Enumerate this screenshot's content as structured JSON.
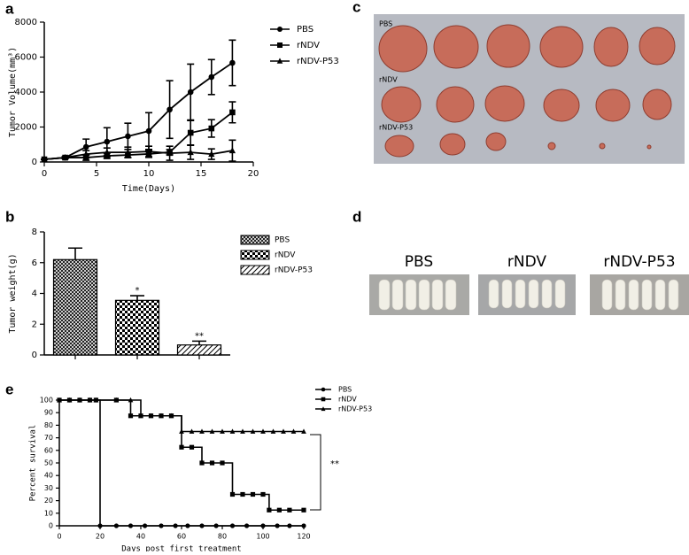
{
  "panels": [
    "a",
    "b",
    "c",
    "d",
    "e"
  ],
  "photo_c_labels": [
    "PBS",
    "rNDV",
    "rNDV-P53"
  ],
  "photo_d_labels": [
    "PBS",
    "rNDV",
    "rNDV-P53"
  ],
  "chart_data": [
    {
      "type": "line",
      "xlabel": "Time(Days)",
      "ylabel": "Tumor Volume(mm³)",
      "x": [
        0,
        2,
        4,
        6,
        8,
        10,
        12,
        14,
        16,
        18
      ],
      "xlim": [
        0,
        20
      ],
      "xticks": [
        0,
        5,
        10,
        15,
        20
      ],
      "ylim": [
        0,
        8000
      ],
      "yticks": [
        0,
        2000,
        4000,
        6000,
        8000
      ],
      "series": [
        {
          "name": "PBS",
          "marker": "circle",
          "color": "#000000",
          "values": [
            150,
            250,
            860,
            1160,
            1470,
            1770,
            3000,
            4000,
            4860,
            5670
          ],
          "errors": [
            0,
            50,
            450,
            800,
            750,
            1050,
            1650,
            1600,
            1000,
            1300
          ]
        },
        {
          "name": "rNDV",
          "marker": "square",
          "color": "#000000",
          "values": [
            150,
            250,
            250,
            350,
            400,
            460,
            560,
            1670,
            1920,
            2840
          ],
          "errors": [
            0,
            50,
            150,
            150,
            150,
            200,
            150,
            700,
            500,
            600
          ]
        },
        {
          "name": "rNDV-P53",
          "marker": "triangle",
          "color": "#000000",
          "values": [
            150,
            250,
            450,
            550,
            550,
            600,
            500,
            550,
            450,
            650
          ],
          "errors": [
            0,
            50,
            200,
            250,
            300,
            300,
            400,
            400,
            300,
            600
          ]
        }
      ]
    },
    {
      "type": "bar",
      "ylabel": "Tumor weight(g)",
      "categories": [
        null,
        null,
        null
      ],
      "ylim": [
        0,
        8
      ],
      "yticks": [
        0,
        2,
        4,
        6,
        8
      ],
      "series": [
        {
          "name": "PBS",
          "color": "#000000",
          "values": [
            6.2,
            null,
            null
          ],
          "errors": [
            0.75,
            null,
            null
          ]
        },
        {
          "name": "rNDV",
          "color": "#000000",
          "values": [
            null,
            3.55,
            null
          ],
          "errors": [
            null,
            0.3,
            null
          ],
          "annotation": "*"
        },
        {
          "name": "rNDV-P53",
          "color": "#000000",
          "values": [
            null,
            null,
            0.65
          ],
          "errors": [
            null,
            null,
            0.25
          ],
          "annotation": "**"
        }
      ]
    },
    {
      "type": "step",
      "xlabel": "Days post first treatment",
      "ylabel": "Percent survival",
      "annotation": "**",
      "xlim": [
        0,
        120
      ],
      "xticks": [
        0,
        20,
        40,
        60,
        80,
        100,
        120
      ],
      "ylim": [
        0,
        100
      ],
      "yticks": [
        0,
        10,
        20,
        30,
        40,
        50,
        60,
        70,
        80,
        90,
        100
      ],
      "series": [
        {
          "name": "PBS",
          "marker": "circle",
          "color": "#000000",
          "x": [
            0,
            5,
            10,
            15,
            18,
            20,
            28,
            35,
            42,
            50,
            57,
            63,
            70,
            77,
            85,
            92,
            100,
            107,
            113,
            120
          ],
          "values": [
            100,
            100,
            100,
            100,
            100,
            0,
            0,
            0,
            0,
            0,
            0,
            0,
            0,
            0,
            0,
            0,
            0,
            0,
            0,
            0
          ]
        },
        {
          "name": "rNDV",
          "marker": "square",
          "color": "#000000",
          "x": [
            0,
            5,
            10,
            15,
            18,
            28,
            35,
            40,
            45,
            50,
            55,
            60,
            65,
            70,
            75,
            80,
            85,
            90,
            95,
            100,
            103,
            108,
            113,
            120
          ],
          "values": [
            100,
            100,
            100,
            100,
            100,
            100,
            87.5,
            87.5,
            87.5,
            87.5,
            87.5,
            62.5,
            62.5,
            50,
            50,
            50,
            25,
            25,
            25,
            25,
            12.5,
            12.5,
            12.5,
            12.5
          ]
        },
        {
          "name": "rNDV-P53",
          "marker": "triangle",
          "color": "#000000",
          "x": [
            0,
            5,
            10,
            15,
            18,
            28,
            35,
            40,
            45,
            50,
            55,
            60,
            65,
            70,
            75,
            80,
            85,
            90,
            95,
            100,
            105,
            110,
            115,
            120
          ],
          "values": [
            100,
            100,
            100,
            100,
            100,
            100,
            100,
            87.5,
            87.5,
            87.5,
            87.5,
            75,
            75,
            75,
            75,
            75,
            75,
            75,
            75,
            75,
            75,
            75,
            75,
            75
          ]
        }
      ]
    }
  ]
}
